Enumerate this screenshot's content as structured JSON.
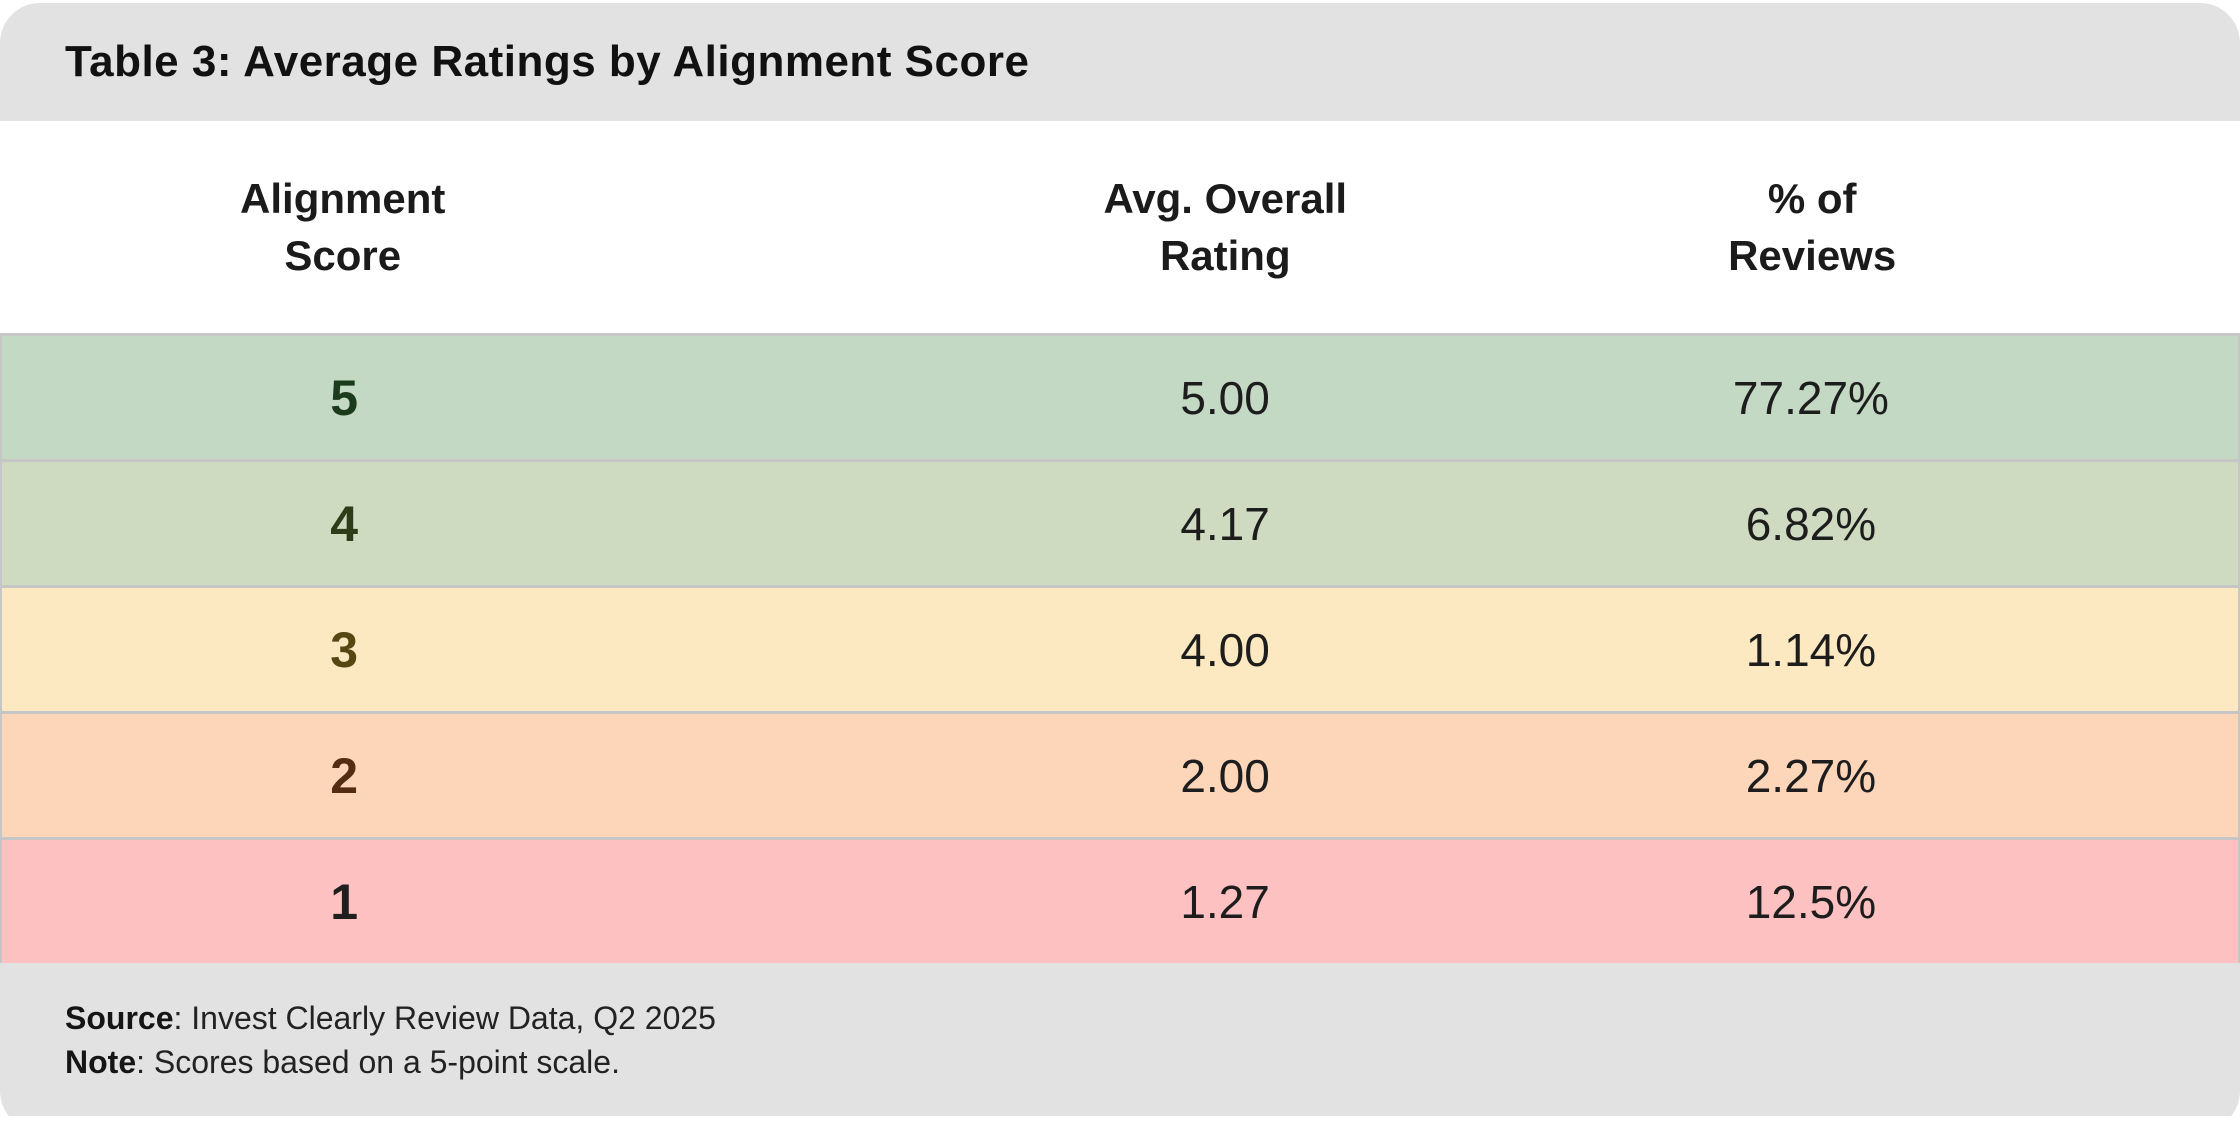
{
  "title": "Table 3: Average Ratings by Alignment Score",
  "table": {
    "columns": [
      {
        "line1": "Alignment",
        "line2": "Score"
      },
      {
        "line1": "Avg. Overall",
        "line2": "Rating"
      },
      {
        "line1": "% of",
        "line2": "Reviews"
      }
    ],
    "rows": [
      {
        "score": "5",
        "rating": "5.00",
        "percent": "77.27%",
        "bg": "#c3d9c3",
        "score_color": "#1c3a1c"
      },
      {
        "score": "4",
        "rating": "4.17",
        "percent": "6.82%",
        "bg": "#cfdbc0",
        "score_color": "#2e3d18"
      },
      {
        "score": "3",
        "rating": "4.00",
        "percent": "1.14%",
        "bg": "#fce9c1",
        "score_color": "#564712"
      },
      {
        "score": "2",
        "rating": "2.00",
        "percent": "2.27%",
        "bg": "#fdd5b9",
        "score_color": "#532c12"
      },
      {
        "score": "1",
        "rating": "1.27",
        "percent": "12.5%",
        "bg": "#fdc1c1",
        "score_color": "#1f1f1f"
      }
    ]
  },
  "footer": {
    "source_label": "Source",
    "source_text": ": Invest Clearly Review Data, Q2 2025",
    "note_label": "Note",
    "note_text": ": Scores based on a 5-point scale."
  },
  "colors": {
    "bar_gray": "#e2e2e2",
    "row_divider": "#c6c6c6",
    "page_bg": "#ffffff"
  },
  "chart_data": {
    "type": "table",
    "title": "Table 3: Average Ratings by Alignment Score",
    "columns": [
      "Alignment Score",
      "Avg. Overall Rating",
      "% of Reviews"
    ],
    "rows": [
      {
        "alignment_score": 5,
        "avg_overall_rating": 5.0,
        "pct_of_reviews": 77.27
      },
      {
        "alignment_score": 4,
        "avg_overall_rating": 4.17,
        "pct_of_reviews": 6.82
      },
      {
        "alignment_score": 3,
        "avg_overall_rating": 4.0,
        "pct_of_reviews": 1.14
      },
      {
        "alignment_score": 2,
        "avg_overall_rating": 2.0,
        "pct_of_reviews": 2.27
      },
      {
        "alignment_score": 1,
        "avg_overall_rating": 1.27,
        "pct_of_reviews": 12.5
      }
    ],
    "source": "Invest Clearly Review Data, Q2 2025",
    "note": "Scores based on a 5-point scale."
  }
}
